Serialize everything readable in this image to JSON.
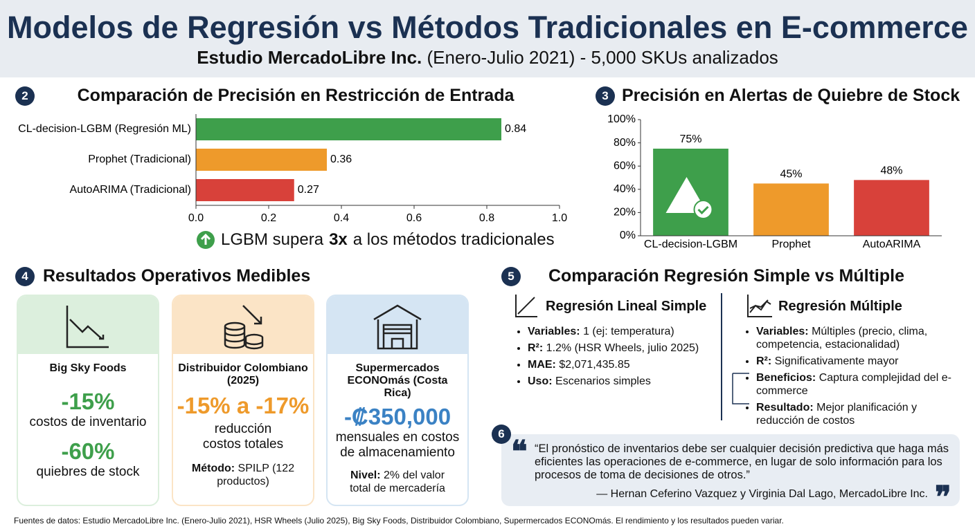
{
  "header": {
    "title": "Modelos de Regresión vs Métodos Tradicionales en E-commerce",
    "subtitle_bold": "Estudio MercadoLibre Inc.",
    "subtitle_rest": "(Enero-Julio 2021) - 5,000 SKUs analizados"
  },
  "chart_data": [
    {
      "type": "hbar",
      "badge": "2",
      "title": "Comparación de Precisión en Restricción de Entrada",
      "categories": [
        "CL-decision-LGBM (Regresión ML)",
        "Prophet (Tradicional)",
        "AutoARIMA (Tradicional)"
      ],
      "values": [
        0.84,
        0.36,
        0.27
      ],
      "colors": [
        "#3e9f4b",
        "#ee9a2b",
        "#d8413a"
      ],
      "xlim": [
        0,
        1
      ],
      "xticks": [
        {
          "value": 0,
          "label": "0.0"
        },
        0.2,
        0.4,
        0.6,
        0.8,
        {
          "value": 1,
          "label": "1.0"
        }
      ],
      "callout": {
        "before": "LGBM supera",
        "emphasis": "3x",
        "after": "a los métodos tradicionales"
      }
    },
    {
      "type": "bar",
      "badge": "3",
      "title": "Precisión en Alertas de Quiebre de Stock",
      "categories": [
        "CL-decision-LGBM",
        "Prophet",
        "AutoARIMA"
      ],
      "values": [
        75,
        45,
        48
      ],
      "value_labels": [
        "75%",
        "45%",
        "48%"
      ],
      "colors": [
        "#3e9f4b",
        "#ee9a2b",
        "#d8413a"
      ],
      "ylim": [
        0,
        100
      ],
      "yticks": [
        {
          "value": 0,
          "label": "0%"
        },
        {
          "value": 20,
          "label": "20%"
        },
        {
          "value": 40,
          "label": "40%"
        },
        {
          "value": 60,
          "label": "60%"
        },
        {
          "value": 80,
          "label": "80%"
        },
        {
          "value": 100,
          "label": "100%"
        }
      ]
    }
  ],
  "results": {
    "badge": "4",
    "title": "Resultados Operativos Medibles",
    "cards": [
      {
        "name": "Big Sky Foods",
        "figure1": "-15%",
        "caption1": "costos de inventario",
        "figure2": "-60%",
        "caption2": "quiebres de stock"
      },
      {
        "name": "Distribuidor Colombiano (2025)",
        "figure1": "-15% a -17%",
        "caption1": "reducción costos totales",
        "note_label": "Método:",
        "note_text": "SPILP (122 productos)"
      },
      {
        "name": "Supermercados ECONOmás (Costa Rica)",
        "figure1": "-₡350,000",
        "caption1": "mensuales en costos de almacenamiento",
        "note_label": "Nivel:",
        "note_text": "2% del valor total de mercadería"
      }
    ]
  },
  "comparison": {
    "badge": "5",
    "title": "Comparación Regresión Simple vs Múltiple",
    "simple": {
      "heading": "Regresión Lineal Simple",
      "items": [
        {
          "label": "Variables:",
          "text": "1 (ej: temperatura)"
        },
        {
          "label": "R²:",
          "text": "1.2% (HSR Wheels, julio 2025)"
        },
        {
          "label": "MAE:",
          "text": "$2,071,435.85"
        },
        {
          "label": "Uso:",
          "text": "Escenarios simples"
        }
      ]
    },
    "multiple": {
      "heading": "Regresión Múltiple",
      "items": [
        {
          "label": "Variables:",
          "text": "Múltiples (precio, clima, competencia, estacionalidad)"
        },
        {
          "label": "R²:",
          "text": "Significativamente mayor"
        },
        {
          "label": "Beneficios:",
          "text": "Captura complejidad del e-commerce"
        },
        {
          "label": "Resultado:",
          "text": "Mejor planificación y reducción de costos"
        }
      ]
    }
  },
  "quote": {
    "badge": "6",
    "text": "“El pronóstico de inventarios debe ser cualquier decisión predictiva que haga más eficientes las operaciones de e-commerce, en lugar de solo información para los procesos de toma de decisiones de otros.”",
    "author": "— Hernan Ceferino Vazquez y Virginia Dal Lago, MercadoLibre Inc."
  },
  "footer": "Fuentes de datos: Estudio MercadoLibre Inc. (Enero-Julio 2021), HSR Wheels (Julio 2025), Big Sky Foods, Distribuidor Colombiano, Supermercados ECONOmás. El rendimiento y los resultados pueden variar."
}
